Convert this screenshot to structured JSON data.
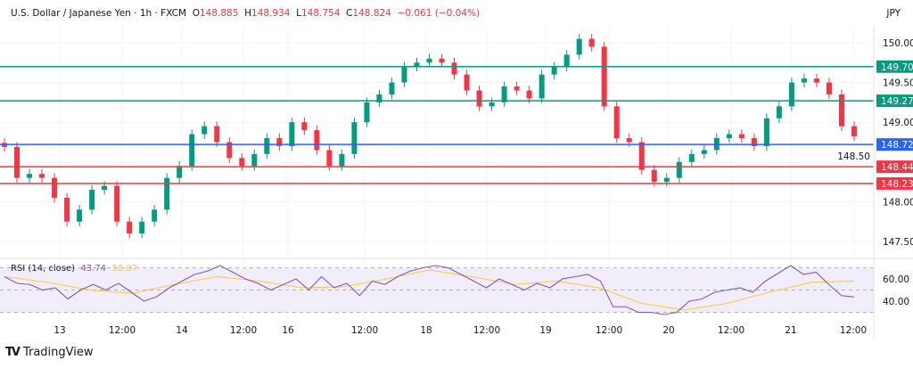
{
  "header": {
    "symbol": "U.S. Dollar / Japanese Yen · 1h · FXCM",
    "open_label": "O",
    "open": "148.885",
    "high_label": "H",
    "high": "148.934",
    "low_label": "L",
    "low": "148.754",
    "close_label": "C",
    "close": "148.824",
    "change": "−0.061 (−0.04%)",
    "currency": "JPY"
  },
  "logo": "TradingView",
  "chart_data": [
    {
      "type": "candlestick",
      "title": "U.S. Dollar / Japanese Yen · 1h · FXCM",
      "ylim": [
        147.3,
        150.3
      ],
      "yticks": [
        "150.00",
        "149.50",
        "149.00",
        "148.50",
        "148.00",
        "147.50"
      ],
      "xticks": [
        "13",
        "12:00",
        "14",
        "12:00",
        "16",
        "12:00",
        "18",
        "12:00",
        "19",
        "12:00",
        "20",
        "12:00",
        "21",
        "12:00"
      ],
      "closes": [
        148.69,
        148.3,
        148.35,
        148.3,
        148.05,
        147.75,
        147.9,
        148.15,
        148.2,
        147.75,
        147.6,
        147.75,
        147.9,
        148.3,
        148.45,
        148.85,
        148.95,
        148.75,
        148.55,
        148.45,
        148.6,
        148.8,
        148.7,
        149.0,
        148.9,
        148.65,
        148.45,
        148.6,
        149.0,
        149.25,
        149.35,
        149.5,
        149.7,
        149.75,
        149.8,
        149.75,
        149.6,
        149.4,
        149.2,
        149.25,
        149.45,
        149.4,
        149.3,
        149.6,
        149.7,
        149.85,
        150.05,
        149.95,
        149.2,
        148.8,
        148.75,
        148.4,
        148.25,
        148.3,
        148.5,
        148.6,
        148.65,
        148.8,
        148.85,
        148.8,
        148.7,
        149.05,
        149.2,
        149.5,
        149.55,
        149.5,
        149.35,
        148.95,
        148.824
      ],
      "levels": [
        {
          "value": "149.70",
          "color": "#089981"
        },
        {
          "value": "149.27",
          "color": "#089981"
        },
        {
          "value": "148.72",
          "color": "#2962ff"
        },
        {
          "value": "148.44",
          "color": "#f23645"
        },
        {
          "value": "148.23",
          "color": "#f23645"
        }
      ],
      "up_color": "#089981",
      "down_color": "#f23645",
      "grid": true
    },
    {
      "type": "line",
      "title": "RSI (14, close)",
      "rsi_value": "43.74",
      "ma_value": "58.07",
      "ylim": [
        25,
        75
      ],
      "yticks": [
        "60.00",
        "40.00"
      ],
      "band": [
        30,
        70
      ],
      "series": [
        {
          "name": "RSI",
          "color": "#7e57c2",
          "values": [
            62,
            56,
            55,
            50,
            52,
            42,
            50,
            55,
            50,
            56,
            48,
            40,
            44,
            52,
            58,
            64,
            67,
            72,
            66,
            60,
            56,
            50,
            55,
            60,
            50,
            62,
            52,
            56,
            45,
            58,
            55,
            62,
            67,
            70,
            72,
            70,
            64,
            58,
            52,
            60,
            55,
            50,
            56,
            52,
            60,
            62,
            64,
            58,
            35,
            35,
            30,
            30,
            28,
            30,
            40,
            42,
            48,
            50,
            52,
            48,
            58,
            65,
            72,
            64,
            66,
            55,
            45,
            43.74
          ]
        },
        {
          "name": "MA",
          "color": "#f7c948",
          "values": [
            62,
            57,
            50,
            47,
            55,
            62,
            58,
            52,
            53,
            60,
            68,
            62,
            55,
            58,
            52,
            38,
            32,
            38,
            48,
            57,
            58.07
          ]
        }
      ]
    }
  ]
}
